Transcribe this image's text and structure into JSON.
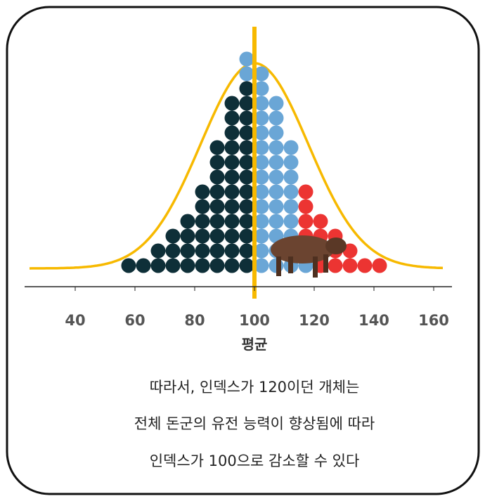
{
  "axis": {
    "ticks": [
      40,
      60,
      80,
      100,
      120,
      140,
      160
    ],
    "label": "평균"
  },
  "colors": {
    "dark": "#0e2f38",
    "blue": "#6aa6d6",
    "red": "#ec3432",
    "curve": "#f7b900"
  },
  "dot_columns": [
    {
      "dark": 1,
      "blue": 0,
      "red": 0
    },
    {
      "dark": 1,
      "blue": 0,
      "red": 0
    },
    {
      "dark": 2,
      "blue": 0,
      "red": 0
    },
    {
      "dark": 3,
      "blue": 0,
      "red": 0
    },
    {
      "dark": 4,
      "blue": 0,
      "red": 0
    },
    {
      "dark": 6,
      "blue": 0,
      "red": 0
    },
    {
      "dark": 9,
      "blue": 0,
      "red": 0
    },
    {
      "dark": 12,
      "blue": 0,
      "red": 0
    },
    {
      "dark": 13,
      "blue": 2,
      "red": 0
    },
    {
      "dark": 0,
      "blue": 14,
      "red": 0
    },
    {
      "dark": 0,
      "blue": 12,
      "red": 0
    },
    {
      "dark": 0,
      "blue": 9,
      "red": 0
    },
    {
      "dark": 0,
      "blue": 2,
      "red": 4
    },
    {
      "dark": 0,
      "blue": 0,
      "red": 4
    },
    {
      "dark": 0,
      "blue": 0,
      "red": 3
    },
    {
      "dark": 0,
      "blue": 0,
      "red": 2
    },
    {
      "dark": 0,
      "blue": 0,
      "red": 1
    },
    {
      "dark": 0,
      "blue": 0,
      "red": 1
    }
  ],
  "caption": [
    "따라서, 인덱스가 120이던 개체는",
    "전체 돈군의 유전 능력이 향상됨에 따라",
    "인덱스가 100으로 감소할 수 있다"
  ]
}
